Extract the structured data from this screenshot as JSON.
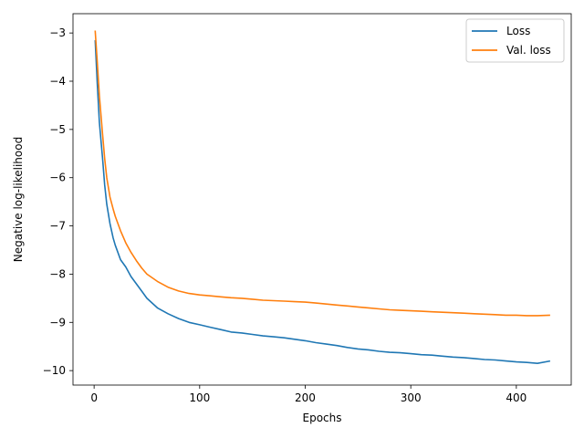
{
  "chart_data": {
    "type": "line",
    "title": "",
    "xlabel": "Epochs",
    "ylabel": "Negative log-likelihood",
    "xlim": [
      -20,
      452
    ],
    "ylim": [
      -10.3,
      -2.6
    ],
    "xticks": [
      0,
      100,
      200,
      300,
      400
    ],
    "yticks": [
      -3,
      -4,
      -5,
      -6,
      -7,
      -8,
      -9,
      -10
    ],
    "xtick_labels": [
      "0",
      "100",
      "200",
      "300",
      "400"
    ],
    "ytick_labels": [
      "−3",
      "−4",
      "−5",
      "−6",
      "−7",
      "−8",
      "−9",
      "−10"
    ],
    "grid": false,
    "legend_position": "top-right",
    "series": [
      {
        "name": "Loss",
        "color": "#1f77b4",
        "x": [
          1,
          3,
          5,
          8,
          10,
          12,
          15,
          18,
          20,
          25,
          30,
          35,
          40,
          45,
          50,
          60,
          70,
          80,
          90,
          100,
          110,
          120,
          130,
          140,
          150,
          160,
          170,
          180,
          190,
          200,
          210,
          220,
          230,
          240,
          250,
          260,
          270,
          280,
          290,
          300,
          310,
          320,
          330,
          340,
          350,
          360,
          370,
          380,
          390,
          400,
          410,
          420,
          432
        ],
        "y": [
          -3.15,
          -4.05,
          -4.85,
          -5.6,
          -6.15,
          -6.55,
          -6.95,
          -7.25,
          -7.4,
          -7.7,
          -7.85,
          -8.05,
          -8.2,
          -8.35,
          -8.5,
          -8.7,
          -8.82,
          -8.92,
          -9.0,
          -9.05,
          -9.1,
          -9.15,
          -9.2,
          -9.22,
          -9.25,
          -9.28,
          -9.3,
          -9.32,
          -9.35,
          -9.38,
          -9.42,
          -9.45,
          -9.48,
          -9.52,
          -9.55,
          -9.57,
          -9.6,
          -9.62,
          -9.63,
          -9.65,
          -9.67,
          -9.68,
          -9.7,
          -9.72,
          -9.73,
          -9.75,
          -9.77,
          -9.78,
          -9.8,
          -9.82,
          -9.83,
          -9.85,
          -9.8
        ]
      },
      {
        "name": "Val. loss",
        "color": "#ff7f0e",
        "x": [
          1,
          3,
          5,
          8,
          10,
          12,
          15,
          18,
          20,
          25,
          30,
          35,
          40,
          45,
          50,
          60,
          70,
          80,
          90,
          100,
          110,
          120,
          130,
          140,
          150,
          160,
          170,
          180,
          190,
          200,
          210,
          220,
          230,
          240,
          250,
          260,
          270,
          280,
          290,
          300,
          310,
          320,
          330,
          340,
          350,
          360,
          370,
          380,
          390,
          400,
          410,
          420,
          432
        ],
        "y": [
          -2.95,
          -3.6,
          -4.3,
          -5.1,
          -5.6,
          -6.0,
          -6.4,
          -6.65,
          -6.8,
          -7.1,
          -7.35,
          -7.55,
          -7.72,
          -7.87,
          -8.0,
          -8.15,
          -8.27,
          -8.35,
          -8.4,
          -8.43,
          -8.45,
          -8.47,
          -8.49,
          -8.5,
          -8.52,
          -8.54,
          -8.55,
          -8.56,
          -8.57,
          -8.58,
          -8.6,
          -8.62,
          -8.64,
          -8.66,
          -8.68,
          -8.7,
          -8.72,
          -8.74,
          -8.75,
          -8.76,
          -8.77,
          -8.78,
          -8.79,
          -8.8,
          -8.81,
          -8.82,
          -8.83,
          -8.84,
          -8.85,
          -8.85,
          -8.86,
          -8.86,
          -8.85
        ]
      }
    ]
  }
}
